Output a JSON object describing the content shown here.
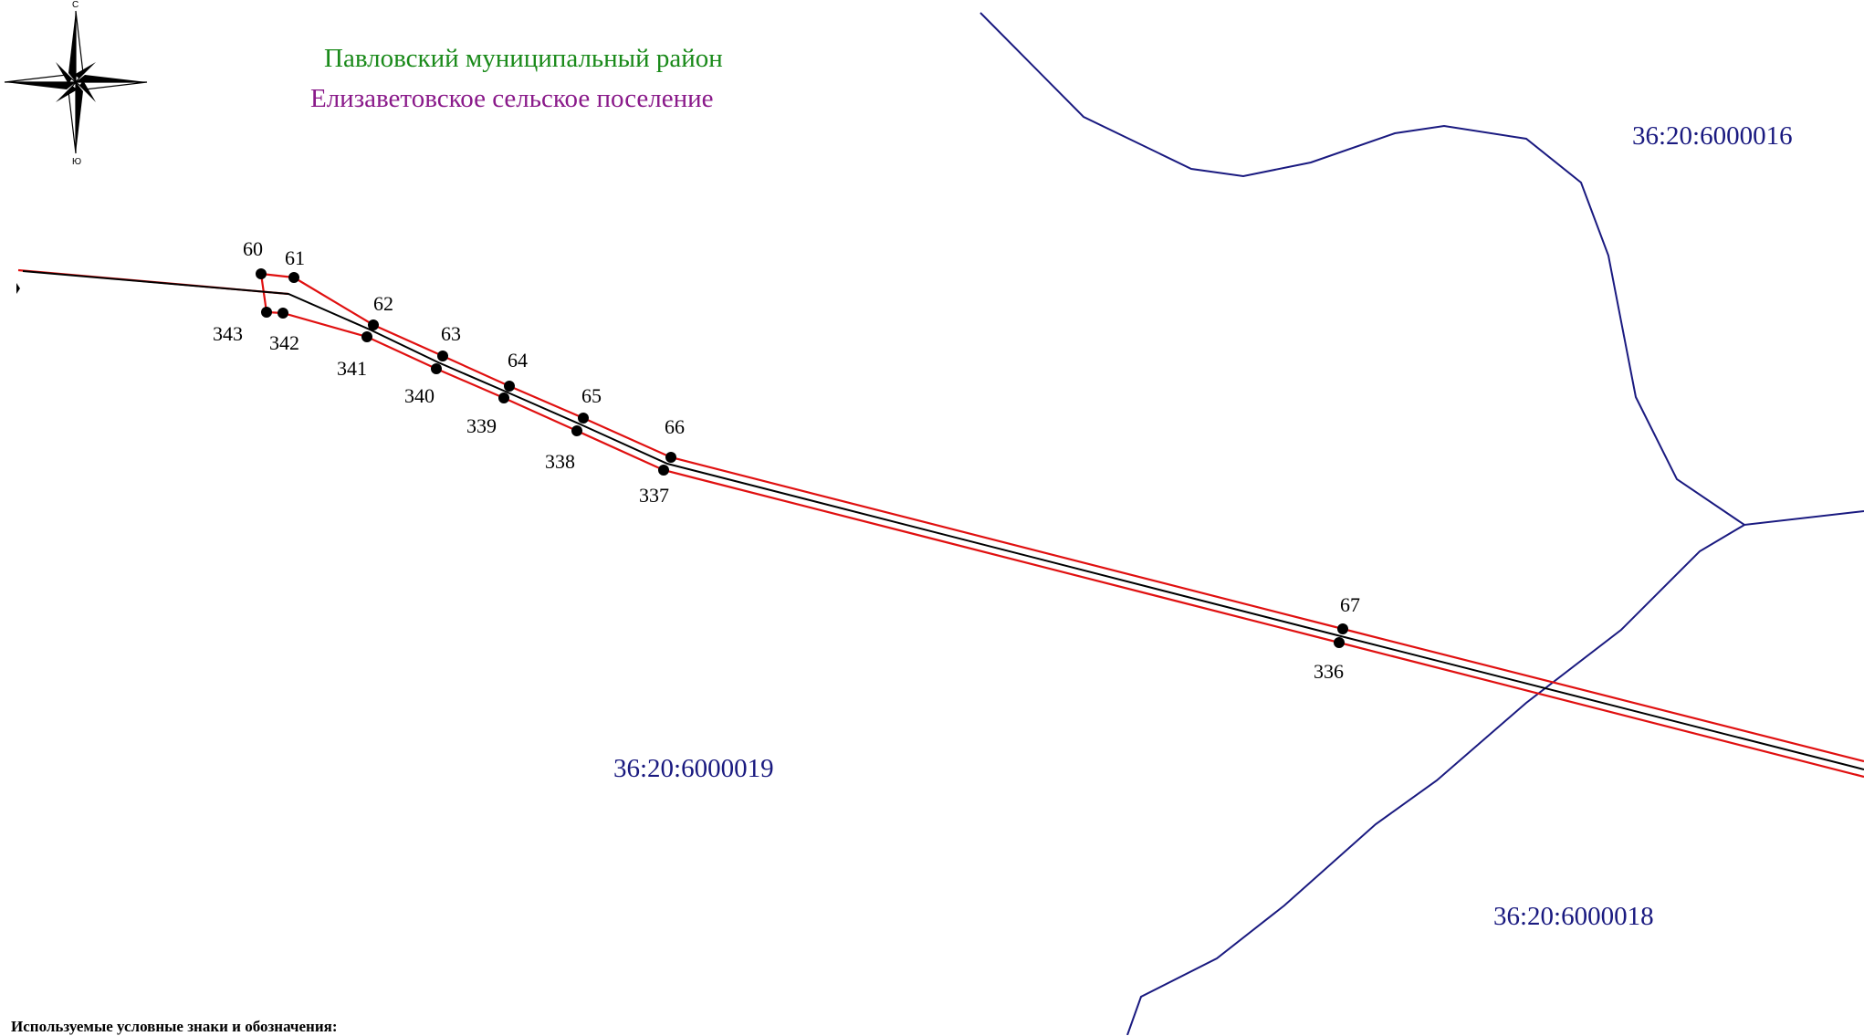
{
  "titles": {
    "region": "Павловский муниципальный район",
    "settlement": "Елизаветовское сельское поселение"
  },
  "colors": {
    "region": "#1a8a1a",
    "settlement": "#8a1a8a",
    "boundary": "#1a1a80",
    "corridor": "#e01010",
    "axis": "#000000",
    "point": "#000000"
  },
  "compass": {
    "north": "С",
    "south": "Ю"
  },
  "cadastral_quarters": {
    "q16": "36:20:6000016",
    "q19": "36:20:6000019",
    "q18": "36:20:6000018"
  },
  "points": {
    "p60": "60",
    "p61": "61",
    "p62": "62",
    "p63": "63",
    "p64": "64",
    "p65": "65",
    "p66": "66",
    "p67": "67",
    "p336": "336",
    "p337": "337",
    "p338": "338",
    "p339": "339",
    "p340": "340",
    "p341": "341",
    "p342": "342",
    "p343": "343"
  },
  "legend": {
    "title": "Используемые условные знаки и обозначения:"
  }
}
